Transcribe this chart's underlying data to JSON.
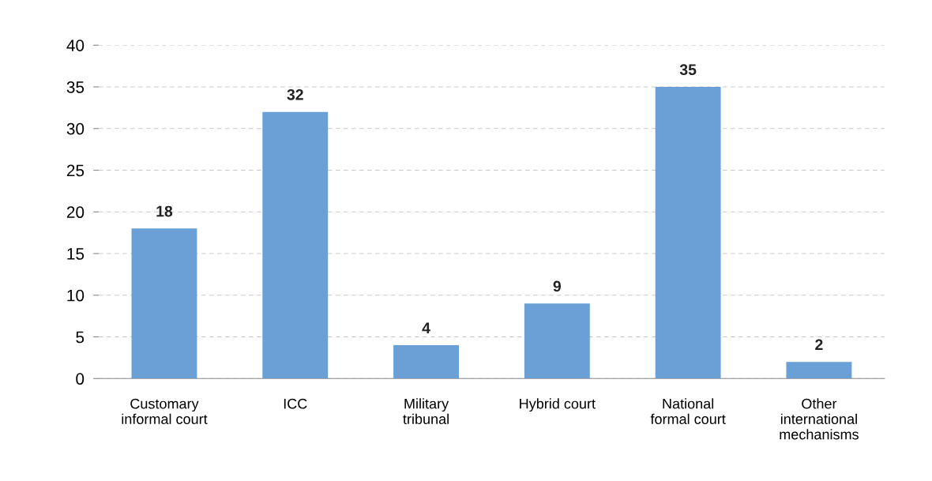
{
  "chart_data": {
    "type": "bar",
    "categories": [
      "Customary\ninformal court",
      "ICC",
      "Military\ntribunal",
      "Hybrid court",
      "National\nformal court",
      "Other\ninternational\nmechanisms"
    ],
    "values": [
      18,
      32,
      4,
      9,
      35,
      2
    ],
    "color": "#6aa0d6",
    "ylim": [
      0,
      40
    ],
    "yticks": [
      0,
      5,
      10,
      15,
      20,
      25,
      30,
      35,
      40
    ],
    "grid": "y",
    "data_labels": true
  }
}
